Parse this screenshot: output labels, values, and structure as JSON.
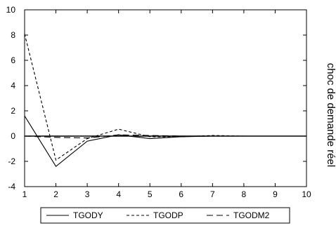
{
  "chart_data": {
    "type": "line",
    "title": "",
    "xlabel": "",
    "ylabel": "",
    "side_label": "choc de demande réel",
    "x": [
      1,
      2,
      3,
      4,
      5,
      6,
      7,
      8,
      9,
      10
    ],
    "xlim": [
      1,
      10
    ],
    "ylim": [
      -4,
      10
    ],
    "x_ticks": [
      "1",
      "2",
      "3",
      "4",
      "5",
      "6",
      "7",
      "8",
      "9",
      "10"
    ],
    "y_ticks": [
      "-4",
      "-2",
      "0",
      "2",
      "4",
      "6",
      "8",
      "10"
    ],
    "grid": false,
    "zero_line": true,
    "legend_position": "bottom",
    "series": [
      {
        "name": "TGODY",
        "style": "solid",
        "values": [
          1.6,
          -2.4,
          -0.4,
          0.1,
          -0.2,
          -0.05,
          0.0,
          0.0,
          0.0,
          0.0
        ]
      },
      {
        "name": "TGODP",
        "style": "short-dash",
        "values": [
          8.1,
          -1.9,
          -0.2,
          0.55,
          -0.05,
          -0.05,
          0.05,
          0.0,
          0.0,
          0.0
        ]
      },
      {
        "name": "TGODM2",
        "style": "long-dash",
        "values": [
          0.0,
          -0.1,
          -0.15,
          0.1,
          0.05,
          0.0,
          0.0,
          0.0,
          0.0,
          0.0
        ]
      }
    ]
  }
}
